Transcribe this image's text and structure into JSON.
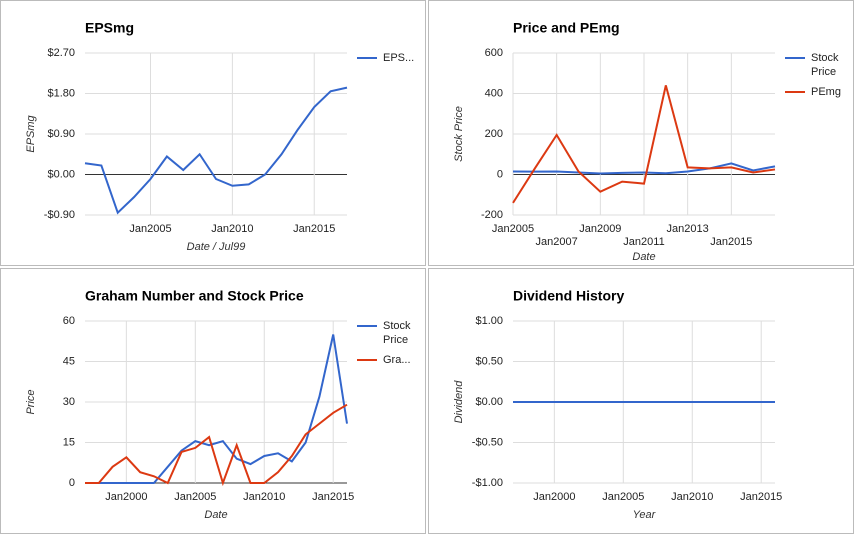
{
  "chart_data": [
    {
      "type": "line",
      "title": "EPSmg",
      "xlabel": "Date / Jul99",
      "ylabel": "EPSmg",
      "legend": "right",
      "grid": true,
      "x": [
        2001,
        2002,
        2003,
        2004,
        2005,
        2006,
        2007,
        2008,
        2009,
        2010,
        2011,
        2012,
        2013,
        2014,
        2015,
        2016,
        2017
      ],
      "series": [
        {
          "name": "EPS...",
          "color": "#3366cc",
          "values": [
            0.25,
            0.2,
            -0.85,
            -0.5,
            -0.1,
            0.4,
            0.1,
            0.45,
            -0.1,
            -0.25,
            -0.22,
            0.0,
            0.45,
            1.0,
            1.5,
            1.85,
            1.93
          ]
        }
      ],
      "xlim": [
        2001,
        2017
      ],
      "xticks": [
        {
          "value": 2005,
          "label": "Jan2005"
        },
        {
          "value": 2010,
          "label": "Jan2010"
        },
        {
          "value": 2015,
          "label": "Jan2015"
        }
      ],
      "ylim": [
        -0.9,
        2.7
      ],
      "yticks": [
        {
          "value": 2.7,
          "label": "$2.70"
        },
        {
          "value": 1.8,
          "label": "$1.80"
        },
        {
          "value": 0.9,
          "label": "$0.90"
        },
        {
          "value": 0,
          "label": "$0.00"
        },
        {
          "value": -0.9,
          "label": "-$0.90"
        }
      ]
    },
    {
      "type": "line",
      "title": "Price and PEmg",
      "xlabel": "Date",
      "ylabel": "Stock Price",
      "legend": "right",
      "grid": true,
      "x": [
        2005,
        2006,
        2007,
        2008,
        2009,
        2010,
        2011,
        2012,
        2013,
        2014,
        2015,
        2016,
        2017
      ],
      "series": [
        {
          "name": "Stock Price",
          "color": "#3366cc",
          "values": [
            15,
            14,
            15,
            10,
            5,
            8,
            10,
            6,
            15,
            30,
            55,
            20,
            40
          ]
        },
        {
          "name": "PEmg",
          "color": "#dc3912",
          "values": [
            -140,
            30,
            195,
            15,
            -85,
            -35,
            -45,
            440,
            35,
            30,
            35,
            10,
            25
          ]
        }
      ],
      "xlim": [
        2005,
        2017
      ],
      "xticks": [
        {
          "value": 2005,
          "label": "Jan2005"
        },
        {
          "value": 2007,
          "label": "Jan2007"
        },
        {
          "value": 2009,
          "label": "Jan2009"
        },
        {
          "value": 2011,
          "label": "Jan2011"
        },
        {
          "value": 2013,
          "label": "Jan2013"
        },
        {
          "value": 2015,
          "label": "Jan2015"
        }
      ],
      "ylim": [
        -200,
        600
      ],
      "yticks": [
        600,
        400,
        200,
        0,
        -200
      ]
    },
    {
      "type": "line",
      "title": "Graham Number and Stock Price",
      "xlabel": "Date",
      "ylabel": "Price",
      "legend": "right",
      "grid": true,
      "x": [
        1997,
        1998,
        1999,
        2000,
        2001,
        2002,
        2003,
        2004,
        2005,
        2006,
        2007,
        2008,
        2009,
        2010,
        2011,
        2012,
        2013,
        2014,
        2015,
        2016
      ],
      "series": [
        {
          "name": "Stock Price",
          "color": "#3366cc",
          "values": [
            0,
            0,
            0,
            0,
            0,
            0,
            6,
            12,
            15.5,
            14,
            15.5,
            9,
            7,
            10,
            11,
            8,
            15,
            32,
            55,
            22
          ]
        },
        {
          "name": "Gra...",
          "color": "#dc3912",
          "values": [
            0,
            0,
            6,
            9.5,
            4,
            2.5,
            0,
            11.5,
            13,
            17,
            0,
            14,
            0,
            0,
            4,
            10,
            18,
            22,
            26,
            29
          ]
        }
      ],
      "xlim": [
        1997,
        2016
      ],
      "xticks": [
        {
          "value": 2000,
          "label": "Jan2000"
        },
        {
          "value": 2005,
          "label": "Jan2005"
        },
        {
          "value": 2010,
          "label": "Jan2010"
        },
        {
          "value": 2015,
          "label": "Jan2015"
        }
      ],
      "ylim": [
        0,
        60
      ],
      "yticks": [
        60,
        45,
        30,
        15,
        0
      ]
    },
    {
      "type": "line",
      "title": "Dividend History",
      "xlabel": "Year",
      "ylabel": "Dividend",
      "grid": true,
      "x": [
        1997,
        1998,
        1999,
        2000,
        2001,
        2002,
        2003,
        2004,
        2005,
        2006,
        2007,
        2008,
        2009,
        2010,
        2011,
        2012,
        2013,
        2014,
        2015,
        2016
      ],
      "series": [
        {
          "color": "#3366cc",
          "values": [
            0,
            0,
            0,
            0,
            0,
            0,
            0,
            0,
            0,
            0,
            0,
            0,
            0,
            0,
            0,
            0,
            0,
            0,
            0,
            0
          ]
        }
      ],
      "xlim": [
        1997,
        2016
      ],
      "xticks": [
        {
          "value": 2000,
          "label": "Jan2000"
        },
        {
          "value": 2005,
          "label": "Jan2005"
        },
        {
          "value": 2010,
          "label": "Jan2010"
        },
        {
          "value": 2015,
          "label": "Jan2015"
        }
      ],
      "ylim": [
        -1,
        1
      ],
      "yticks": [
        {
          "value": 1,
          "label": "$1.00"
        },
        {
          "value": 0.5,
          "label": "$0.50"
        },
        {
          "value": 0,
          "label": "$0.00"
        },
        {
          "value": -0.5,
          "label": "-$0.50"
        },
        {
          "value": -1,
          "label": "-$1.00"
        }
      ]
    }
  ]
}
